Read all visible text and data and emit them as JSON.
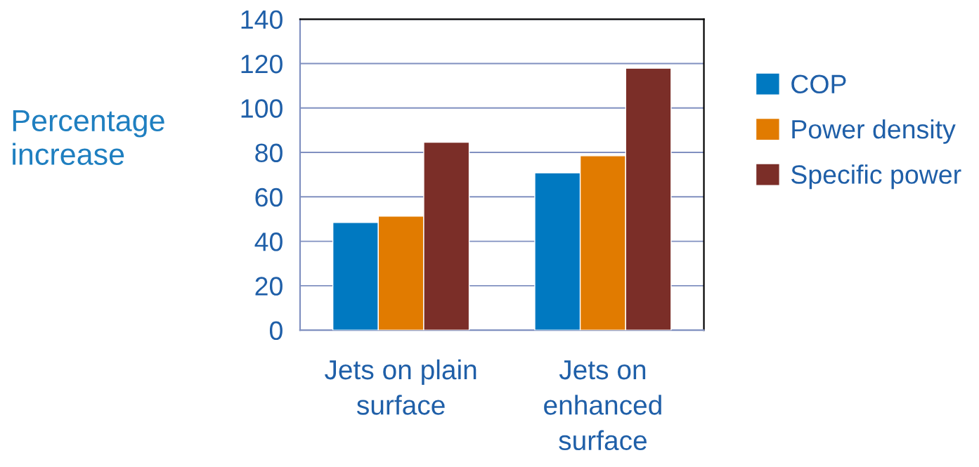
{
  "chart_data": {
    "type": "bar",
    "ylabel": "Percentage\nincrease",
    "categories": [
      "Jets on plain\nsurface",
      "Jets on\nenhanced\nsurface"
    ],
    "series": [
      {
        "name": "COP",
        "color": "#0079c1",
        "values": [
          48.5,
          70.8
        ]
      },
      {
        "name": "Power density",
        "color": "#e17b00",
        "values": [
          51.3,
          78.5
        ]
      },
      {
        "name": "Specific power",
        "color": "#7b2e28",
        "values": [
          84.6,
          117.9
        ]
      }
    ],
    "ylim": [
      0,
      140
    ],
    "yticks": [
      0,
      20,
      40,
      60,
      80,
      100,
      120,
      140
    ],
    "grid": "y",
    "legend": "right"
  }
}
